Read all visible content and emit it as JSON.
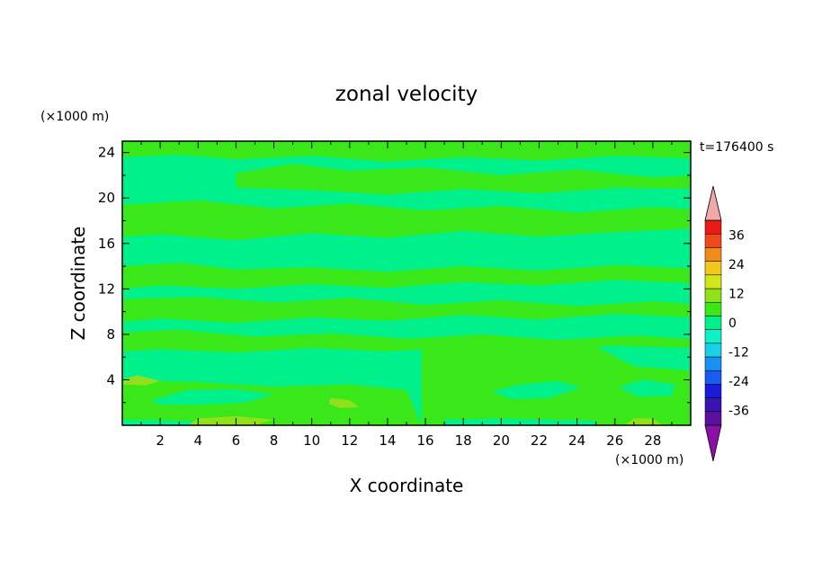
{
  "chart_data": {
    "type": "heatmap",
    "title": "zonal velocity",
    "xlabel": "X coordinate",
    "ylabel": "Z coordinate",
    "x_unit": "(×1000 m)",
    "y_unit": "(×1000 m)",
    "time_label": "t=176400 s",
    "xlim": [
      0,
      30
    ],
    "ylim": [
      0,
      25
    ],
    "x_ticks": [
      2,
      4,
      6,
      8,
      10,
      12,
      14,
      16,
      18,
      20,
      22,
      24,
      26,
      28
    ],
    "y_ticks": [
      4,
      8,
      12,
      16,
      20,
      24
    ],
    "colorbar": {
      "levels": [
        -42,
        -36,
        -30,
        -24,
        -18,
        -12,
        -6,
        0,
        6,
        12,
        18,
        24,
        30,
        36,
        42
      ],
      "labels": [
        36,
        24,
        12,
        0,
        -12,
        -24,
        -36
      ],
      "colors": [
        "#5a109c",
        "#3a14b0",
        "#1a1ad8",
        "#1a5cf0",
        "#1a90f0",
        "#1ad0e8",
        "#10f0c8",
        "#00f08c",
        "#3ae81a",
        "#90e01a",
        "#d0e81a",
        "#f0c81a",
        "#f08c1a",
        "#f04a1a",
        "#e81a1a"
      ],
      "overflow_high_color": "#f0a8a8",
      "overflow_low_color": "#8c10a8"
    },
    "background_level": 0,
    "regions": [
      {
        "level": 6,
        "polygon": [
          [
            0,
            23.6
          ],
          [
            3,
            23.8
          ],
          [
            6,
            23.4
          ],
          [
            10,
            23.7
          ],
          [
            14,
            23.2
          ],
          [
            18,
            23.6
          ],
          [
            22,
            23.3
          ],
          [
            26,
            23.7
          ],
          [
            30,
            23.5
          ],
          [
            30,
            25
          ],
          [
            0,
            25
          ]
        ]
      },
      {
        "level": 6,
        "polygon": [
          [
            6,
            22.2
          ],
          [
            9,
            23.0
          ],
          [
            12,
            22.4
          ],
          [
            16,
            22.7
          ],
          [
            20,
            22.0
          ],
          [
            24,
            22.5
          ],
          [
            28,
            21.8
          ],
          [
            30,
            22.0
          ],
          [
            30,
            20.8
          ],
          [
            26,
            20.9
          ],
          [
            22,
            20.4
          ],
          [
            18,
            20.8
          ],
          [
            14,
            20.3
          ],
          [
            10,
            20.7
          ],
          [
            6,
            20.9
          ]
        ]
      },
      {
        "level": 6,
        "polygon": [
          [
            0,
            19.4
          ],
          [
            4,
            19.8
          ],
          [
            8,
            19.1
          ],
          [
            12,
            19.5
          ],
          [
            16,
            18.9
          ],
          [
            20,
            19.3
          ],
          [
            24,
            18.7
          ],
          [
            28,
            19.2
          ],
          [
            30,
            19.0
          ],
          [
            30,
            17.3
          ],
          [
            26,
            17.0
          ],
          [
            22,
            16.6
          ],
          [
            18,
            17.1
          ],
          [
            14,
            16.5
          ],
          [
            10,
            16.9
          ],
          [
            6,
            16.3
          ],
          [
            2,
            16.8
          ],
          [
            0,
            16.6
          ]
        ]
      },
      {
        "level": 6,
        "polygon": [
          [
            0,
            14.0
          ],
          [
            3,
            14.3
          ],
          [
            6,
            13.7
          ],
          [
            10,
            13.9
          ],
          [
            14,
            13.5
          ],
          [
            18,
            14.0
          ],
          [
            22,
            13.6
          ],
          [
            26,
            14.1
          ],
          [
            30,
            13.8
          ],
          [
            30,
            12.5
          ],
          [
            26,
            12.8
          ],
          [
            22,
            12.3
          ],
          [
            18,
            12.6
          ],
          [
            14,
            12.1
          ],
          [
            10,
            12.4
          ],
          [
            6,
            12.0
          ],
          [
            2,
            12.3
          ],
          [
            0,
            12.0
          ]
        ]
      },
      {
        "level": 6,
        "polygon": [
          [
            0,
            11.1
          ],
          [
            4,
            11.3
          ],
          [
            8,
            10.8
          ],
          [
            12,
            11.2
          ],
          [
            16,
            10.6
          ],
          [
            20,
            11.0
          ],
          [
            24,
            10.5
          ],
          [
            28,
            10.9
          ],
          [
            30,
            10.7
          ],
          [
            30,
            9.5
          ],
          [
            26,
            9.8
          ],
          [
            22,
            9.3
          ],
          [
            18,
            9.7
          ],
          [
            14,
            9.2
          ],
          [
            10,
            9.5
          ],
          [
            6,
            9.0
          ],
          [
            2,
            9.4
          ],
          [
            0,
            9.1
          ]
        ]
      },
      {
        "level": 6,
        "polygon": [
          [
            0,
            8.2
          ],
          [
            3,
            8.4
          ],
          [
            7,
            7.8
          ],
          [
            11,
            8.1
          ],
          [
            15,
            7.6
          ],
          [
            19,
            8.0
          ],
          [
            23,
            7.5
          ],
          [
            27,
            7.9
          ],
          [
            30,
            7.6
          ],
          [
            30,
            6.8
          ],
          [
            26,
            7.0
          ],
          [
            22,
            6.6
          ],
          [
            18,
            6.9
          ],
          [
            14,
            6.5
          ],
          [
            10,
            6.8
          ],
          [
            6,
            6.4
          ],
          [
            2,
            6.7
          ],
          [
            0,
            6.5
          ]
        ]
      },
      {
        "level": 6,
        "polygon": [
          [
            0,
            4.0
          ],
          [
            4,
            3.8
          ],
          [
            8,
            3.4
          ],
          [
            12,
            3.6
          ],
          [
            15,
            3.1
          ],
          [
            15.8,
            0
          ],
          [
            0,
            0
          ]
        ]
      },
      {
        "level": 6,
        "polygon": [
          [
            15.8,
            7.6
          ],
          [
            19,
            7.9
          ],
          [
            22,
            7.2
          ],
          [
            25,
            6.9
          ],
          [
            27,
            5.2
          ],
          [
            30,
            4.8
          ],
          [
            30,
            0
          ],
          [
            15.8,
            0
          ]
        ]
      },
      {
        "level": 0,
        "polygon": [
          [
            1.5,
            2.2
          ],
          [
            3.5,
            3.1
          ],
          [
            6,
            3.2
          ],
          [
            8,
            2.7
          ],
          [
            6.5,
            2.0
          ],
          [
            4,
            1.8
          ],
          [
            2,
            1.8
          ]
        ]
      },
      {
        "level": 0,
        "polygon": [
          [
            19.5,
            3.0
          ],
          [
            21,
            3.6
          ],
          [
            23,
            3.9
          ],
          [
            24.2,
            3.3
          ],
          [
            22.5,
            2.4
          ],
          [
            20.5,
            2.3
          ]
        ]
      },
      {
        "level": 0,
        "polygon": [
          [
            26.2,
            3.4
          ],
          [
            27.5,
            4.0
          ],
          [
            29.2,
            3.6
          ],
          [
            29.0,
            2.6
          ],
          [
            27.2,
            2.5
          ]
        ]
      },
      {
        "level": 0,
        "polygon": [
          [
            0,
            0
          ],
          [
            6,
            0
          ],
          [
            6,
            0.3
          ],
          [
            0,
            0.5
          ]
        ]
      },
      {
        "level": 0,
        "polygon": [
          [
            17,
            0
          ],
          [
            25,
            0
          ],
          [
            25,
            0.4
          ],
          [
            20,
            0.6
          ],
          [
            17,
            0.5
          ]
        ]
      },
      {
        "level": 12,
        "polygon": [
          [
            3.5,
            0
          ],
          [
            7,
            0
          ],
          [
            8,
            0.5
          ],
          [
            6,
            0.8
          ],
          [
            4,
            0.6
          ]
        ]
      },
      {
        "level": 12,
        "polygon": [
          [
            0,
            4.0
          ],
          [
            0.8,
            4.4
          ],
          [
            2.0,
            3.9
          ],
          [
            1.2,
            3.5
          ],
          [
            0,
            3.6
          ]
        ]
      },
      {
        "level": 12,
        "polygon": [
          [
            11.0,
            2.4
          ],
          [
            12.0,
            2.2
          ],
          [
            12.5,
            1.6
          ],
          [
            11.5,
            1.5
          ],
          [
            10.9,
            1.9
          ]
        ]
      },
      {
        "level": 12,
        "polygon": [
          [
            26.5,
            0
          ],
          [
            28.5,
            0
          ],
          [
            28.0,
            0.6
          ],
          [
            27.0,
            0.6
          ]
        ]
      }
    ]
  }
}
